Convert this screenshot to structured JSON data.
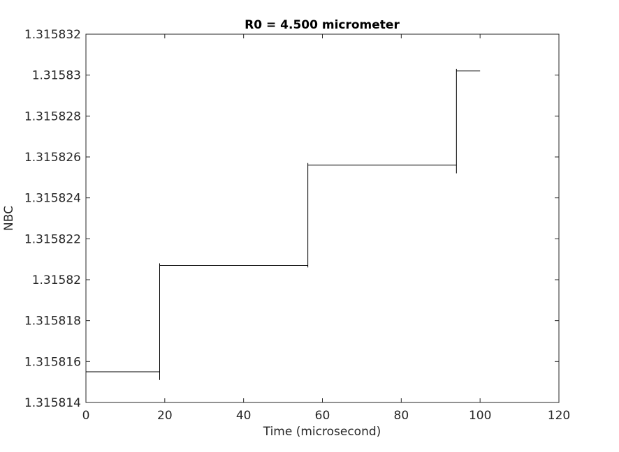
{
  "chart_data": {
    "type": "line",
    "style": "step",
    "title": "R0 = 4.500 micrometer",
    "xlabel": "Time (microsecond)",
    "ylabel": "NBC",
    "xlim": [
      0,
      120
    ],
    "ylim": [
      1.315814,
      1.315832
    ],
    "xticks": [
      0,
      20,
      40,
      60,
      80,
      100,
      120
    ],
    "xtick_labels": [
      "0",
      "20",
      "40",
      "60",
      "80",
      "100",
      "120"
    ],
    "yticks": [
      1.315814,
      1.315816,
      1.315818,
      1.31582,
      1.315822,
      1.315824,
      1.315826,
      1.315828,
      1.31583,
      1.315832
    ],
    "ytick_labels": [
      "1.315814",
      "1.315816",
      "1.315818",
      "1.31582",
      "1.315822",
      "1.315824",
      "1.315826",
      "1.315828",
      "1.31583",
      "1.315832"
    ],
    "grid": false,
    "line_color": "#000000",
    "series": [
      {
        "segments": [
          {
            "x_start": 0,
            "x_end": 18.7,
            "y": 1.3158155
          },
          {
            "x_start": 18.7,
            "x_end": 56.3,
            "y": 1.3158207
          },
          {
            "x_start": 56.3,
            "x_end": 94.0,
            "y": 1.3158256
          },
          {
            "x_start": 94.0,
            "x_end": 100.0,
            "y": 1.3158302
          }
        ],
        "jumps": [
          {
            "x": 18.7,
            "y_min": 1.3158151,
            "y_max": 1.3158208
          },
          {
            "x": 56.3,
            "y_min": 1.3158206,
            "y_max": 1.3158257
          },
          {
            "x": 94.0,
            "y_min": 1.3158252,
            "y_max": 1.3158303
          }
        ]
      }
    ]
  }
}
